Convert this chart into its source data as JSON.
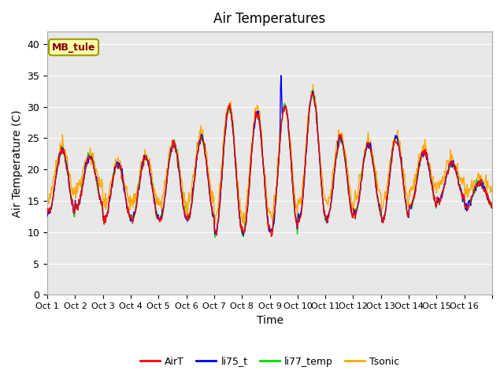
{
  "title": "Air Temperatures",
  "xlabel": "Time",
  "ylabel": "Air Temperature (C)",
  "ylim": [
    0,
    42
  ],
  "yticks": [
    0,
    5,
    10,
    15,
    20,
    25,
    30,
    35,
    40
  ],
  "x_tick_positions": [
    0,
    1,
    2,
    3,
    4,
    5,
    6,
    7,
    8,
    9,
    10,
    11,
    12,
    13,
    14,
    15,
    16
  ],
  "x_labels": [
    "Oct 1",
    "Oct 2",
    "Oct 3",
    "Oct 4",
    "Oct 5",
    "Oct 6",
    "Oct 7",
    "Oct 8",
    "Oct 9",
    "Oct 10",
    "Oct 11",
    "Oct 12",
    "Oct 13",
    "Oct 14",
    "Oct 15",
    "Oct 16",
    ""
  ],
  "station_label": "MB_tule",
  "legend_entries": [
    "AirT",
    "li75_t",
    "li77_temp",
    "Tsonic"
  ],
  "line_colors": [
    "#ff0000",
    "#0000ff",
    "#00dd00",
    "#ffaa00"
  ],
  "bg_color": "#e8e8e8",
  "grid_color": "#ffffff",
  "daily_max": [
    23,
    22,
    21,
    22,
    24,
    25,
    30,
    29,
    30,
    32,
    25,
    24,
    25,
    23,
    21,
    18
  ],
  "daily_min": [
    13,
    14,
    12,
    12,
    12,
    12,
    10,
    10,
    10,
    12,
    12,
    13,
    12,
    14,
    15,
    14
  ],
  "n_per_day": 48
}
